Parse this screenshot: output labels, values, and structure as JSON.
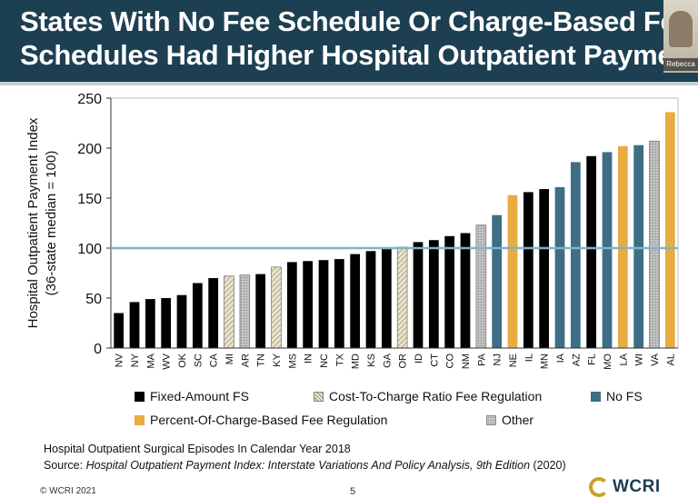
{
  "header": {
    "title_line1": "States With No Fee Schedule Or Charge-Based Fee",
    "title_line2": "Schedules Had Higher Hospital Outpatient Payments",
    "participant_name": "Rebecca"
  },
  "chart_data": {
    "type": "bar",
    "ylabel_line1": "Hospital Outpatient Payment Index",
    "ylabel_line2": "(36-state median = 100)",
    "ylim": [
      0,
      250
    ],
    "yticks": [
      0,
      50,
      100,
      150,
      200,
      250
    ],
    "reference_line": 100,
    "categories": [
      "NV",
      "NY",
      "MA",
      "WV",
      "OK",
      "SC",
      "CA",
      "MI",
      "AR",
      "TN",
      "KY",
      "MS",
      "IN",
      "NC",
      "TX",
      "MD",
      "KS",
      "GA",
      "OR",
      "ID",
      "CT",
      "CO",
      "NM",
      "PA",
      "NJ",
      "NE",
      "IL",
      "MN",
      "IA",
      "AZ",
      "FL",
      "MO",
      "LA",
      "WI",
      "VA",
      "AL"
    ],
    "values": [
      35,
      46,
      49,
      50,
      53,
      65,
      70,
      72,
      73,
      74,
      81,
      86,
      87,
      88,
      89,
      94,
      97,
      99,
      101,
      106,
      108,
      112,
      115,
      123,
      133,
      153,
      156,
      159,
      161,
      186,
      192,
      196,
      202,
      203,
      207,
      236
    ],
    "groups": [
      "fixed",
      "fixed",
      "fixed",
      "fixed",
      "fixed",
      "fixed",
      "fixed",
      "ctc",
      "other",
      "fixed",
      "ctc",
      "fixed",
      "fixed",
      "fixed",
      "fixed",
      "fixed",
      "fixed",
      "fixed",
      "ctc",
      "fixed",
      "fixed",
      "fixed",
      "fixed",
      "other",
      "nofs",
      "pct",
      "fixed",
      "fixed",
      "nofs",
      "nofs",
      "fixed",
      "nofs",
      "pct",
      "nofs",
      "other",
      "pct"
    ],
    "legend": [
      {
        "key": "fixed",
        "label": "Fixed-Amount FS"
      },
      {
        "key": "ctc",
        "label": "Cost-To-Charge Ratio Fee Regulation"
      },
      {
        "key": "nofs",
        "label": "No FS"
      },
      {
        "key": "pct",
        "label": "Percent-Of-Charge-Based Fee Regulation"
      },
      {
        "key": "other",
        "label": "Other"
      }
    ]
  },
  "colors": {
    "fixed": "#000000",
    "nofs": "#3d6e86",
    "pct": "#e8ac43",
    "other": "#bdbdbd",
    "ctc": "#ede3c6",
    "reference_line": "#7fb2cd",
    "title_bar": "#1d3f52"
  },
  "footer": {
    "note": "Hospital Outpatient Surgical Episodes In Calendar Year 2018",
    "source_prefix": "Source: ",
    "source_title": "Hospital Outpatient Payment Index: Interstate Variations And Policy Analysis, 9th Edition",
    "source_suffix": " (2020)",
    "copyright": "© WCRI 2021",
    "page_number": "5",
    "logo_text": "WCRI"
  }
}
